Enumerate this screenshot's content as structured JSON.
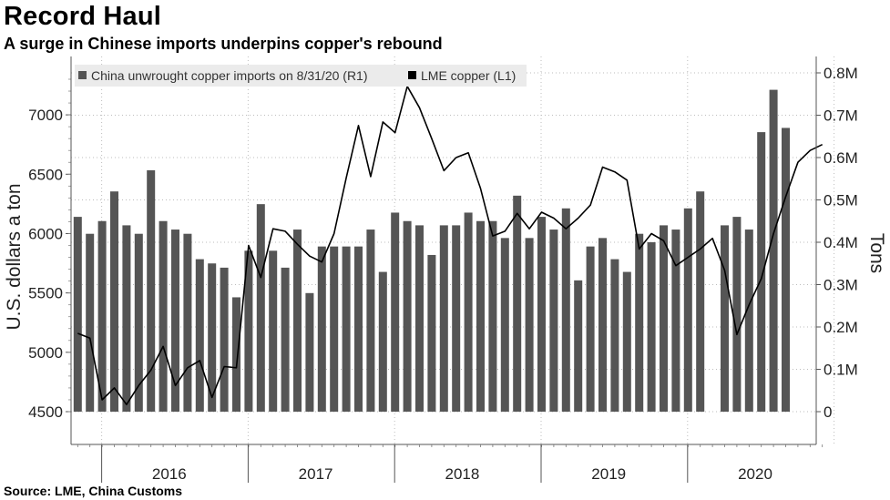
{
  "title": "Record Haul",
  "subtitle": "A surge in Chinese imports underpins copper's rebound",
  "source": "Source: LME, China Customs",
  "chart_data": {
    "type": "bar+line",
    "legend": [
      {
        "label": "China unwrought copper imports on 8/31/20 (R1)",
        "color": "#555555",
        "marker": "square"
      },
      {
        "label": "LME copper (L1)",
        "color": "#000000",
        "marker": "square"
      }
    ],
    "left_axis": {
      "label": "U.S. dollars a ton",
      "min": 4500,
      "max": 7400,
      "ticks": [
        4500,
        5000,
        5500,
        6000,
        6500,
        7000
      ]
    },
    "right_axis": {
      "label": "Tons",
      "min": 0,
      "max": 0.85,
      "ticks": [
        0,
        0.1,
        0.2,
        0.3,
        0.4,
        0.5,
        0.6,
        0.7,
        0.8
      ],
      "tick_labels": [
        "0",
        "0.1M",
        "0.2M",
        "0.3M",
        "0.4M",
        "0.5M",
        "0.6M",
        "0.7M",
        "0.8M"
      ]
    },
    "x_axis": {
      "years": [
        "2016",
        "2017",
        "2018",
        "2019",
        "2020"
      ],
      "start": "2015-11",
      "end": "2020-08"
    },
    "bars": {
      "name": "China unwrought copper imports (million tons)",
      "values": [
        0.46,
        0.42,
        0.45,
        0.52,
        0.44,
        0.42,
        0.57,
        0.45,
        0.43,
        0.42,
        0.36,
        0.35,
        0.34,
        0.27,
        0.38,
        0.49,
        0.38,
        0.34,
        0.43,
        0.28,
        0.39,
        0.39,
        0.39,
        0.39,
        0.43,
        0.33,
        0.47,
        0.45,
        0.44,
        0.37,
        0.44,
        0.44,
        0.47,
        0.45,
        0.45,
        0.41,
        0.51,
        0.41,
        0.46,
        0.43,
        0.48,
        0.31,
        0.39,
        0.41,
        0.36,
        0.33,
        0.42,
        0.4,
        0.44,
        0.43,
        0.48,
        0.52,
        null,
        0.44,
        0.46,
        0.43,
        0.66,
        0.76,
        0.67
      ]
    },
    "line": {
      "name": "LME copper ($/ton)",
      "values": [
        5160,
        5120,
        4600,
        4700,
        4560,
        4720,
        4850,
        5050,
        4720,
        4870,
        4930,
        4620,
        4880,
        4870,
        5900,
        5630,
        6040,
        6020,
        5910,
        5810,
        5760,
        6000,
        6470,
        6910,
        6480,
        6940,
        6850,
        7240,
        7060,
        6800,
        6530,
        6640,
        6680,
        6380,
        5980,
        6020,
        6170,
        6040,
        6180,
        6130,
        6040,
        6130,
        6240,
        6560,
        6520,
        6450,
        5870,
        6000,
        5940,
        5730,
        5800,
        5870,
        5960,
        5690,
        5150,
        5400,
        5620,
        6000,
        6310,
        6600,
        6700,
        6750
      ]
    }
  }
}
